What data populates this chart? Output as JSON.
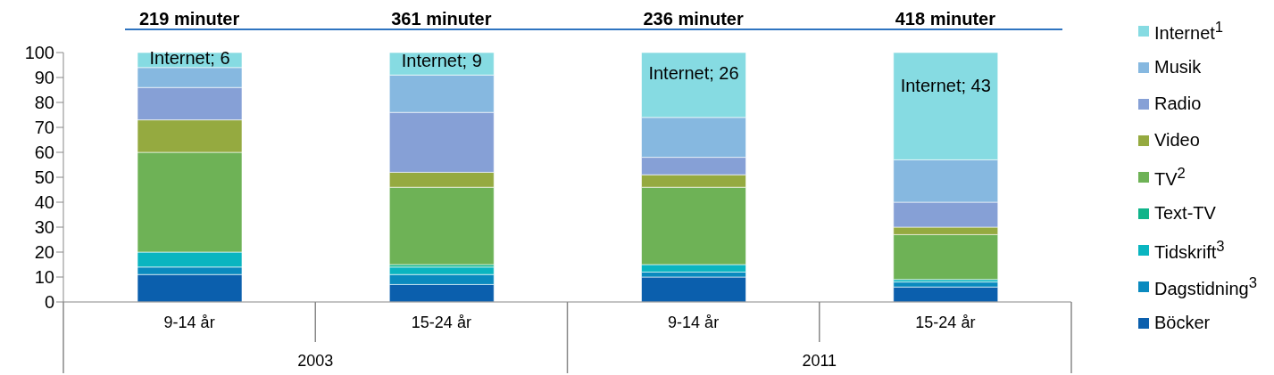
{
  "chart_data": {
    "type": "bar",
    "stacked": true,
    "categories": [
      "9-14 år",
      "15-24 år",
      "9-14 år",
      "15-24 år"
    ],
    "ylim": [
      0,
      100
    ],
    "yticks": [
      0,
      10,
      20,
      30,
      40,
      50,
      60,
      70,
      80,
      90,
      100
    ],
    "legend": "right",
    "annotations": [
      "219 minuter",
      "361 minuter",
      "236 minuter",
      "418 minuter",
      "2003",
      "2011"
    ],
    "series": [
      {
        "name": "Böcker",
        "color": "#0b5fad",
        "values": [
          11,
          7,
          10,
          6
        ]
      },
      {
        "name": "Dagstidning$^{3}$",
        "color": "#0a8abf",
        "values": [
          3,
          4,
          2,
          2
        ]
      },
      {
        "name": "Tidskrift$^{3}$",
        "color": "#0ab5c0",
        "values": [
          6,
          3,
          3,
          1
        ]
      },
      {
        "name": "Text-TV",
        "color": "#10b48a",
        "values": [
          0,
          1,
          0,
          0
        ]
      },
      {
        "name": "TV$^{2}$",
        "color": "#6eb256",
        "values": [
          40,
          31,
          31,
          18
        ]
      },
      {
        "name": "Video",
        "color": "#95aa40",
        "values": [
          13,
          6,
          5,
          3
        ]
      },
      {
        "name": "Radio",
        "color": "#86a0d6",
        "values": [
          13,
          24,
          7,
          10
        ]
      },
      {
        "name": "Musik",
        "color": "#86b8e0",
        "values": [
          8,
          15,
          16,
          17
        ]
      },
      {
        "name": "Internet$^{1}$",
        "color": "#86dbe2",
        "values": [
          6,
          9,
          26,
          43
        ],
        "value_labels": [
          "Internet; 6",
          "Internet; 9",
          "Internet; 26",
          "Internet; 43"
        ]
      }
    ]
  }
}
